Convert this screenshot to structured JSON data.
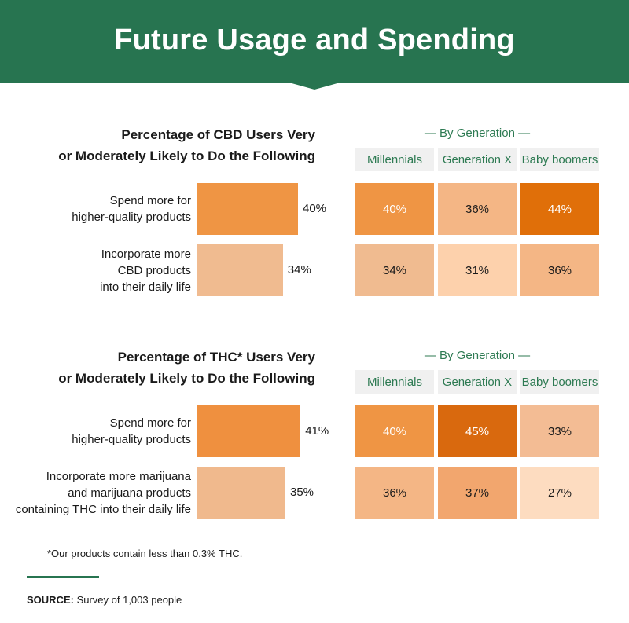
{
  "title": "Future Usage and Spending",
  "gen_caption": "— By Generation —",
  "generations": [
    "Millennials",
    "Generation X",
    "Baby boomers"
  ],
  "colors": {
    "banner": "#277450",
    "accent_text": "#2d7a52",
    "heat_scale": {
      "27": "#fddcc0",
      "31": "#fdd1ac",
      "33": "#f3bc94",
      "34": "#f0bb90",
      "35": "#f0b98d",
      "36": "#f4b685",
      "37": "#f2a66e",
      "40": "#ef9544",
      "41": "#ef903f",
      "44": "#e06f09",
      "45": "#d9690e"
    }
  },
  "chart_data": [
    {
      "type": "bar",
      "title": "Percentage of CBD Users Very or Moderately Likely to Do the Following",
      "title_lines": [
        "Percentage of CBD Users Very",
        "or Moderately Likely to Do the Following"
      ],
      "categories": [
        {
          "lines": [
            "Spend more for",
            "higher-quality products"
          ]
        },
        {
          "lines": [
            "Incorporate more",
            "CBD products",
            "into their daily life"
          ]
        }
      ],
      "values": [
        40,
        34
      ],
      "value_labels": [
        "40%",
        "34%"
      ],
      "heatmap": {
        "type": "heatmap",
        "columns": [
          "Millennials",
          "Generation X",
          "Baby boomers"
        ],
        "rows": [
          [
            40,
            36,
            44
          ],
          [
            34,
            31,
            36
          ]
        ]
      }
    },
    {
      "type": "bar",
      "title": "Percentage of THC* Users Very or Moderately Likely to Do the Following",
      "title_lines": [
        "Percentage of THC* Users Very",
        "or Moderately Likely to Do the Following"
      ],
      "categories": [
        {
          "lines": [
            "Spend more for",
            "higher-quality products"
          ]
        },
        {
          "lines": [
            "Incorporate more marijuana",
            "and marijuana products",
            "containing THC into their daily life"
          ]
        }
      ],
      "values": [
        41,
        35
      ],
      "value_labels": [
        "41%",
        "35%"
      ],
      "heatmap": {
        "type": "heatmap",
        "columns": [
          "Millennials",
          "Generation X",
          "Baby boomers"
        ],
        "rows": [
          [
            40,
            45,
            33
          ],
          [
            36,
            37,
            27
          ]
        ]
      }
    }
  ],
  "footnote": "*Our products contain less than 0.3% THC.",
  "source_label": "SOURCE:",
  "source_text": " Survey of 1,003 people"
}
